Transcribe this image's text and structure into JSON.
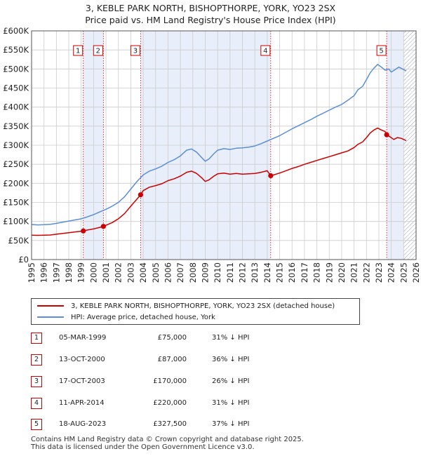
{
  "title_line1": "3, KEBLE PARK NORTH, BISHOPTHORPE, YORK, YO23 2SX",
  "title_line2": "Price paid vs. HM Land Registry's House Price Index (HPI)",
  "colors": {
    "hpi": "#5b8ed4",
    "price": "#cc0000",
    "shade": "#e8eefa",
    "grid": "#cccccc",
    "hatch": "#9aa6b8"
  },
  "legend": {
    "price_label": "3, KEBLE PARK NORTH, BISHOPTHORPE, YORK, YO23 2SX (detached house)",
    "hpi_label": "HPI: Average price, detached house, York"
  },
  "sales": [
    {
      "num": "1",
      "date": "05-MAR-1999",
      "price": "£75,000",
      "hpi": "31% ↓ HPI"
    },
    {
      "num": "2",
      "date": "13-OCT-2000",
      "price": "£87,000",
      "hpi": "36% ↓ HPI"
    },
    {
      "num": "3",
      "date": "17-OCT-2003",
      "price": "£170,000",
      "hpi": "26% ↓ HPI"
    },
    {
      "num": "4",
      "date": "11-APR-2014",
      "price": "£220,000",
      "hpi": "31% ↓ HPI"
    },
    {
      "num": "5",
      "date": "18-AUG-2023",
      "price": "£327,500",
      "hpi": "37% ↓ HPI"
    }
  ],
  "footer_line1": "Contains HM Land Registry data © Crown copyright and database right 2025.",
  "footer_line2": "This data is licensed under the Open Government Licence v3.0.",
  "chart_data": {
    "type": "line",
    "xlim": [
      1995,
      2026
    ],
    "ylim": [
      0,
      600000
    ],
    "x_ticks": [
      1995,
      1996,
      1997,
      1998,
      1999,
      2000,
      2001,
      2002,
      2003,
      2004,
      2005,
      2006,
      2007,
      2008,
      2009,
      2010,
      2011,
      2012,
      2013,
      2014,
      2015,
      2016,
      2017,
      2018,
      2019,
      2020,
      2021,
      2022,
      2023,
      2024,
      2025,
      2026
    ],
    "y_ticks": [
      {
        "value": 0,
        "label": "£0"
      },
      {
        "value": 50000,
        "label": "£50K"
      },
      {
        "value": 100000,
        "label": "£100K"
      },
      {
        "value": 150000,
        "label": "£150K"
      },
      {
        "value": 200000,
        "label": "£200K"
      },
      {
        "value": 250000,
        "label": "£250K"
      },
      {
        "value": 300000,
        "label": "£300K"
      },
      {
        "value": 350000,
        "label": "£350K"
      },
      {
        "value": 400000,
        "label": "£400K"
      },
      {
        "value": 450000,
        "label": "£450K"
      },
      {
        "value": 500000,
        "label": "£500K"
      },
      {
        "value": 550000,
        "label": "£550K"
      },
      {
        "value": 600000,
        "label": "£600K"
      }
    ],
    "shaded_ranges": [
      [
        1999.17,
        2000.79
      ],
      [
        2003.79,
        2014.28
      ],
      [
        2023.63,
        2025.0
      ]
    ],
    "future_hatch_from": 2025.0,
    "markers": [
      {
        "label": "1",
        "x": 1999.17,
        "y": 75000
      },
      {
        "label": "2",
        "x": 2000.79,
        "y": 87000
      },
      {
        "label": "3",
        "x": 2003.79,
        "y": 170000
      },
      {
        "label": "4",
        "x": 2014.28,
        "y": 220000
      },
      {
        "label": "5",
        "x": 2023.63,
        "y": 327500
      }
    ],
    "series": [
      {
        "name": "HPI: Average price, detached house, York",
        "color": "#5b8ed4",
        "points": [
          [
            1995.0,
            92000
          ],
          [
            1995.5,
            91000
          ],
          [
            1996.0,
            91500
          ],
          [
            1996.5,
            92500
          ],
          [
            1997.0,
            95000
          ],
          [
            1997.5,
            98000
          ],
          [
            1998.0,
            101000
          ],
          [
            1998.5,
            104000
          ],
          [
            1999.0,
            107000
          ],
          [
            1999.5,
            112000
          ],
          [
            2000.0,
            118000
          ],
          [
            2000.5,
            125000
          ],
          [
            2001.0,
            132000
          ],
          [
            2001.5,
            140000
          ],
          [
            2002.0,
            150000
          ],
          [
            2002.5,
            165000
          ],
          [
            2003.0,
            185000
          ],
          [
            2003.5,
            205000
          ],
          [
            2004.0,
            222000
          ],
          [
            2004.5,
            232000
          ],
          [
            2005.0,
            238000
          ],
          [
            2005.5,
            245000
          ],
          [
            2006.0,
            255000
          ],
          [
            2006.5,
            262000
          ],
          [
            2007.0,
            272000
          ],
          [
            2007.5,
            287000
          ],
          [
            2007.9,
            290000
          ],
          [
            2008.3,
            282000
          ],
          [
            2008.7,
            268000
          ],
          [
            2009.0,
            258000
          ],
          [
            2009.3,
            264000
          ],
          [
            2009.7,
            278000
          ],
          [
            2010.0,
            287000
          ],
          [
            2010.5,
            291000
          ],
          [
            2011.0,
            289000
          ],
          [
            2011.5,
            292000
          ],
          [
            2012.0,
            293000
          ],
          [
            2012.5,
            295000
          ],
          [
            2013.0,
            298000
          ],
          [
            2013.5,
            304000
          ],
          [
            2014.0,
            311000
          ],
          [
            2014.5,
            318000
          ],
          [
            2015.0,
            325000
          ],
          [
            2015.5,
            334000
          ],
          [
            2016.0,
            343000
          ],
          [
            2016.5,
            351000
          ],
          [
            2017.0,
            359000
          ],
          [
            2017.5,
            367000
          ],
          [
            2018.0,
            376000
          ],
          [
            2018.5,
            384000
          ],
          [
            2019.0,
            392000
          ],
          [
            2019.5,
            400000
          ],
          [
            2020.0,
            407000
          ],
          [
            2020.5,
            418000
          ],
          [
            2021.0,
            430000
          ],
          [
            2021.3,
            445000
          ],
          [
            2021.7,
            455000
          ],
          [
            2022.0,
            472000
          ],
          [
            2022.3,
            490000
          ],
          [
            2022.6,
            502000
          ],
          [
            2022.9,
            512000
          ],
          [
            2023.2,
            505000
          ],
          [
            2023.5,
            497000
          ],
          [
            2023.8,
            500000
          ],
          [
            2024.0,
            492000
          ],
          [
            2024.3,
            498000
          ],
          [
            2024.6,
            505000
          ],
          [
            2024.9,
            500000
          ],
          [
            2025.2,
            495000
          ]
        ]
      },
      {
        "name": "3, KEBLE PARK NORTH, BISHOPTHORPE, YORK, YO23 2SX (detached house)",
        "color": "#cc0000",
        "points": [
          [
            1995.0,
            64000
          ],
          [
            1995.5,
            63500
          ],
          [
            1996.0,
            64000
          ],
          [
            1996.5,
            64500
          ],
          [
            1997.0,
            66500
          ],
          [
            1997.5,
            68500
          ],
          [
            1998.0,
            70500
          ],
          [
            1998.5,
            72500
          ],
          [
            1999.17,
            75000
          ],
          [
            1999.5,
            77500
          ],
          [
            2000.0,
            80500
          ],
          [
            2000.5,
            84500
          ],
          [
            2000.79,
            87000
          ],
          [
            2001.0,
            90000
          ],
          [
            2001.5,
            97000
          ],
          [
            2002.0,
            107000
          ],
          [
            2002.5,
            121000
          ],
          [
            2003.0,
            140000
          ],
          [
            2003.5,
            159000
          ],
          [
            2003.79,
            170000
          ],
          [
            2004.0,
            181000
          ],
          [
            2004.5,
            190000
          ],
          [
            2005.0,
            194000
          ],
          [
            2005.5,
            199000
          ],
          [
            2006.0,
            207000
          ],
          [
            2006.5,
            212000
          ],
          [
            2007.0,
            219000
          ],
          [
            2007.5,
            229000
          ],
          [
            2007.9,
            232000
          ],
          [
            2008.3,
            226000
          ],
          [
            2008.7,
            215000
          ],
          [
            2009.0,
            205000
          ],
          [
            2009.3,
            209000
          ],
          [
            2009.7,
            219000
          ],
          [
            2010.0,
            225000
          ],
          [
            2010.5,
            227000
          ],
          [
            2011.0,
            224000
          ],
          [
            2011.5,
            226000
          ],
          [
            2012.0,
            224000
          ],
          [
            2012.5,
            225000
          ],
          [
            2013.0,
            226000
          ],
          [
            2013.5,
            229000
          ],
          [
            2014.0,
            233000
          ],
          [
            2014.28,
            220000
          ],
          [
            2014.5,
            222000
          ],
          [
            2015.0,
            227000
          ],
          [
            2015.5,
            233000
          ],
          [
            2016.0,
            239000
          ],
          [
            2016.5,
            244000
          ],
          [
            2017.0,
            250000
          ],
          [
            2017.5,
            255000
          ],
          [
            2018.0,
            260000
          ],
          [
            2018.5,
            265000
          ],
          [
            2019.0,
            270000
          ],
          [
            2019.5,
            275000
          ],
          [
            2020.0,
            280000
          ],
          [
            2020.5,
            285000
          ],
          [
            2021.0,
            294000
          ],
          [
            2021.3,
            302000
          ],
          [
            2021.7,
            309000
          ],
          [
            2022.0,
            320000
          ],
          [
            2022.3,
            332000
          ],
          [
            2022.6,
            340000
          ],
          [
            2022.9,
            345000
          ],
          [
            2023.2,
            340000
          ],
          [
            2023.5,
            336000
          ],
          [
            2023.63,
            327500
          ],
          [
            2023.9,
            322000
          ],
          [
            2024.2,
            315000
          ],
          [
            2024.5,
            320000
          ],
          [
            2024.8,
            318000
          ],
          [
            2025.2,
            312000
          ]
        ]
      }
    ]
  }
}
